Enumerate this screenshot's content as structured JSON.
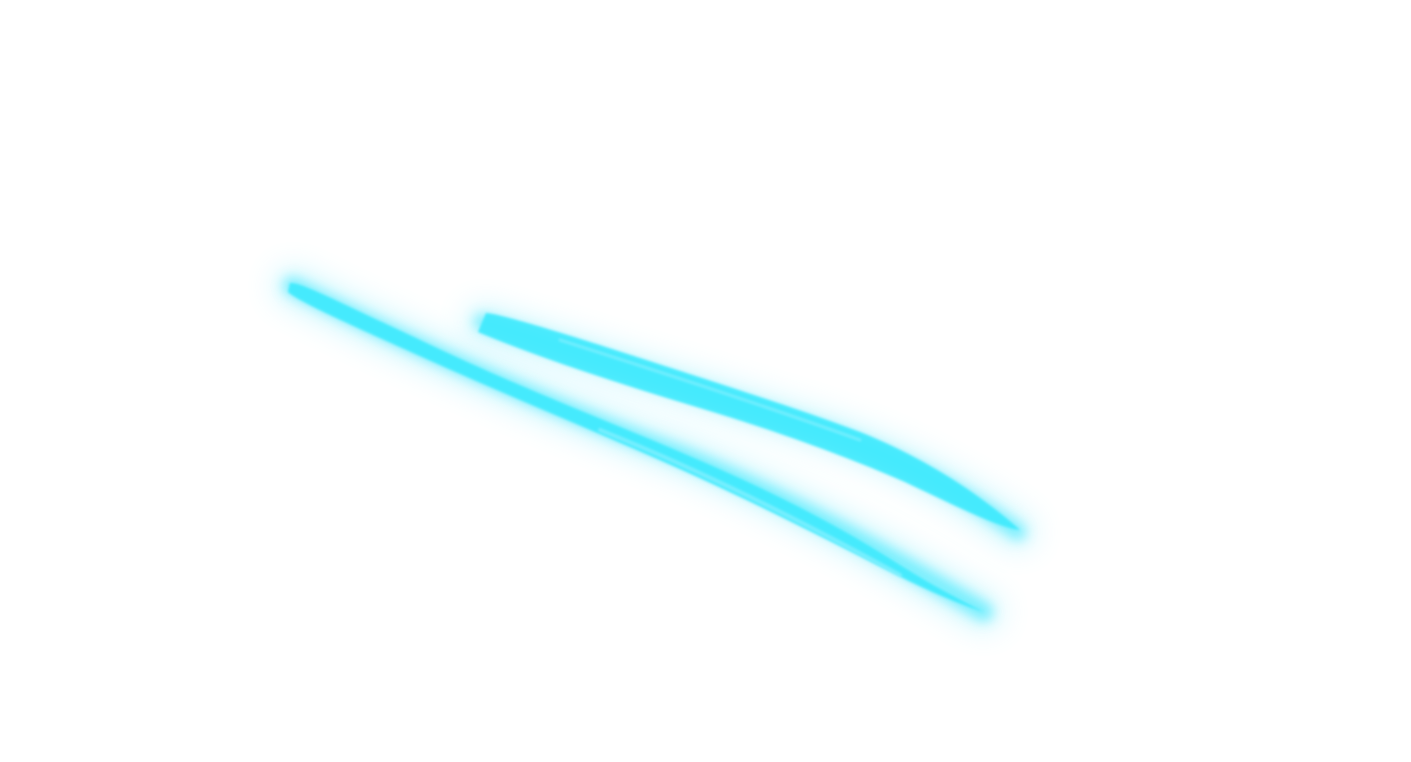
{
  "scene": {
    "description_free": true,
    "background_color": "#ffffff",
    "glow_color": "#8eeefd",
    "stroke_color": "#3feafd",
    "stroke_highlight": "#9ef3ff",
    "stroke_count": 2
  }
}
